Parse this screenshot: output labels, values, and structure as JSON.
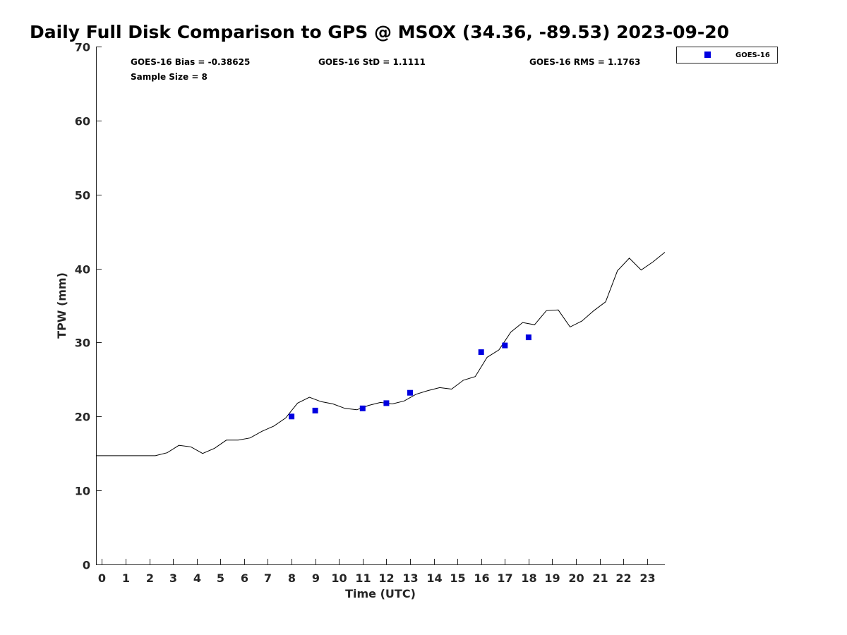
{
  "chart_data": {
    "type": "scatter",
    "title": "Daily Full Disk Comparison to GPS @ MSOX (34.36, -89.53) 2023-09-20",
    "xlabel": "Time (UTC)",
    "ylabel": "TPW (mm)",
    "xlim": [
      -0.25,
      23.75
    ],
    "ylim": [
      0,
      70
    ],
    "x_ticks": [
      "0",
      "1",
      "2",
      "3",
      "4",
      "5",
      "6",
      "7",
      "8",
      "9",
      "10",
      "11",
      "12",
      "13",
      "14",
      "15",
      "16",
      "17",
      "18",
      "19",
      "20",
      "21",
      "22",
      "23"
    ],
    "y_ticks": [
      "0",
      "10",
      "20",
      "30",
      "40",
      "50",
      "60",
      "70"
    ],
    "grid": false,
    "legend_position": "outside-top-right",
    "stats": {
      "bias": "GOES-16 Bias = -0.38625",
      "std": "GOES-16 StD = 1.1111",
      "rms": "GOES-16 RMS = 1.1763",
      "sample_size": "Sample Size = 8"
    },
    "series": [
      {
        "kind": "line",
        "color": "#000000",
        "x": [
          -0.25,
          0.25,
          0.75,
          1.25,
          1.75,
          2.25,
          2.75,
          3.25,
          3.75,
          4.25,
          4.75,
          5.25,
          5.75,
          6.25,
          6.75,
          7.25,
          7.75,
          8.25,
          8.75,
          9.25,
          9.75,
          10.25,
          10.75,
          11.25,
          11.75,
          12.25,
          12.75,
          13.25,
          13.75,
          14.25,
          14.75,
          15.25,
          15.75,
          16.25,
          16.75,
          17.25,
          17.75,
          18.25,
          18.75,
          19.25,
          19.75,
          20.25,
          20.75,
          21.25,
          21.75,
          22.25,
          22.75,
          23.25,
          23.75
        ],
        "y": [
          14.7,
          14.7,
          14.7,
          14.7,
          14.7,
          14.7,
          15.1,
          16.1,
          15.9,
          15.0,
          15.7,
          16.8,
          16.8,
          17.1,
          18.0,
          18.7,
          19.8,
          21.8,
          22.6,
          22.0,
          21.7,
          21.1,
          20.9,
          21.5,
          21.9,
          21.7,
          22.1,
          23.0,
          23.5,
          23.9,
          23.7,
          24.9,
          25.4,
          28.0,
          29.0,
          31.4,
          32.7,
          32.4,
          34.3,
          34.4,
          32.1,
          32.9,
          34.3,
          35.5,
          39.7,
          41.4,
          39.8,
          40.9,
          42.2
        ]
      },
      {
        "name": "GOES-16",
        "kind": "scatter",
        "color": "#0000e0",
        "x": [
          8,
          9,
          11,
          12,
          13,
          16,
          17,
          18
        ],
        "y": [
          20.0,
          20.8,
          21.1,
          21.8,
          23.2,
          28.7,
          29.6,
          30.7
        ]
      }
    ]
  }
}
